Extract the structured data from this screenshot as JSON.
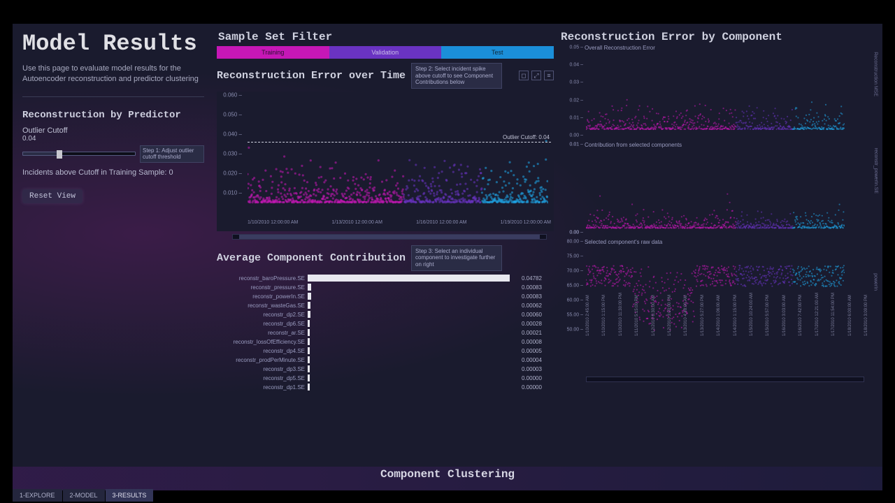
{
  "page": {
    "title": "Model Results",
    "subtitle": "Use this page to evaluate model results for the Autoencoder reconstruction and predictor clustering"
  },
  "sidebar": {
    "section_title": "Reconstruction by Predictor",
    "cutoff_label": "Outlier Cutoff",
    "cutoff_value": "0.04",
    "slider": {
      "min": 0,
      "max": 0.12,
      "value": 0.04
    },
    "step1_tip": "Step 1: Adjust outlier cutoff threshold",
    "incidents_text": "Incidents above Cutoff in Training Sample: 0",
    "reset_button": "Reset View"
  },
  "filter": {
    "title": "Sample Set Filter",
    "tabs": [
      {
        "label": "Training",
        "color": "#c617b6",
        "text_color": "#2a1030"
      },
      {
        "label": "Validation",
        "color": "#6a33c2",
        "text_color": "#c8bde8"
      },
      {
        "label": "Test",
        "color": "#1b8fd9",
        "text_color": "#102838"
      }
    ]
  },
  "error_over_time": {
    "title": "Reconstruction Error over Time",
    "step2_tip": "Step 2: Select incident spike above cutoff to see Component Contributions below",
    "type": "scatter",
    "ylim": [
      0,
      0.065
    ],
    "yticks": [
      0.01,
      0.02,
      0.03,
      0.04,
      0.05,
      0.06
    ],
    "cutoff_line": 0.04,
    "cutoff_label": "Outlier Cutoff: 0.04",
    "x_labels": [
      "1/10/2010 12:00:00 AM",
      "1/13/2010 12:00:00 AM",
      "1/16/2010 12:00:00 AM",
      "1/19/2010 12:00:00 AM"
    ],
    "series_colors": {
      "training": "#c617b6",
      "validation": "#6a33c2",
      "test": "#1fa6e8"
    },
    "segment_breaks": [
      0.52,
      0.78
    ],
    "point_count": 900,
    "bg": "#1a1b2e"
  },
  "avg_contribution": {
    "title": "Average Component Contribution",
    "step3_tip": "Step 3: Select an individual component to investigate further on right",
    "type": "bar",
    "bar_color": "#e8e8ef",
    "max_value": 0.05,
    "bars": [
      {
        "label": "reconstr_baroPressure.SE",
        "value": 0.04782,
        "display": "0.04782"
      },
      {
        "label": "reconstr_pressure.SE",
        "value": 0.00083,
        "display": "0.00083"
      },
      {
        "label": "reconstr_powerIn.SE",
        "value": 0.00083,
        "display": "0.00083"
      },
      {
        "label": "reconstr_wasteGas.SE",
        "value": 0.00062,
        "display": "0.00062"
      },
      {
        "label": "reconstr_dp2.SE",
        "value": 0.0006,
        "display": "0.00060"
      },
      {
        "label": "reconstr_dp6.SE",
        "value": 0.00028,
        "display": "0.00028"
      },
      {
        "label": "reconstr_ar.SE",
        "value": 0.00021,
        "display": "0.00021"
      },
      {
        "label": "reconstr_lossOfEfficiency.SE",
        "value": 8e-05,
        "display": "0.00008"
      },
      {
        "label": "reconstr_dp4.SE",
        "value": 5e-05,
        "display": "0.00005"
      },
      {
        "label": "reconstr_prodPerMinute.SE",
        "value": 4e-05,
        "display": "0.00004"
      },
      {
        "label": "reconstr_dp3.SE",
        "value": 3e-05,
        "display": "0.00003"
      },
      {
        "label": "reconstr_dp5.SE",
        "value": 0.0,
        "display": "0.00000"
      },
      {
        "label": "reconstr_dp1.SE",
        "value": 0.0,
        "display": "0.00000"
      }
    ]
  },
  "right": {
    "title": "Reconstruction Error by Component",
    "panels": [
      {
        "type": "scatter",
        "heading": "Overall Reconstruction Error",
        "side_label": "Reconstruction MSE",
        "ylim": [
          0,
          0.05
        ],
        "yticks": [
          0.0,
          0.01,
          0.02,
          0.03,
          0.04,
          0.05
        ],
        "segment_breaks": [
          0.58,
          0.8
        ],
        "yspread": [
          0.0,
          0.018
        ],
        "base": 0.005
      },
      {
        "type": "scatter",
        "heading": "Contribution from selected components",
        "side_label": "reconstr_powerIn.SE",
        "ylim": [
          0,
          0.01
        ],
        "yticks": [
          0.0,
          0.0,
          0.0,
          0.0,
          0.01,
          0.01
        ],
        "segment_breaks": [
          0.58,
          0.8
        ],
        "yspread": [
          0.0,
          0.0025
        ],
        "base": 0.0008
      },
      {
        "type": "scatter",
        "heading": "Selected component's raw data",
        "side_label": "powerIn",
        "ylim": [
          50,
          80
        ],
        "yticks": [
          50.0,
          55.0,
          60.0,
          65.0,
          70.0,
          75.0,
          80.0
        ],
        "segment_breaks": [
          0.58,
          0.8
        ],
        "yspread": [
          52,
          77
        ],
        "base": 70
      }
    ],
    "x_labels": [
      "1/10/2010 2:45:00 AM",
      "1/10/2010 1:15:00 PM",
      "1/10/2010 11:30:00 PM",
      "1/11/2010 5:15:00 PM",
      "1/12/2010 6:30:00 AM",
      "1/12/2010 3:00:00 PM",
      "1/13/2010 4:48:00 AM",
      "1/13/2010 5:27:00 PM",
      "1/14/2010 1:06:00 AM",
      "1/14/2010 1:15:00 PM",
      "1/15/2010 10:24:00 AM",
      "1/15/2010 5:57:00 PM",
      "1/16/2010 3:03:00 AM",
      "1/16/2010 7:42:00 PM",
      "1/17/2010 12:21:00 AM",
      "1/17/2010 11:54:00 PM",
      "1/18/2010 6:00:00 AM",
      "1/18/2010 3:09:00 PM"
    ]
  },
  "clustering": {
    "title": "Component Clustering"
  },
  "bottom_tabs": [
    {
      "label": "1-EXPLORE"
    },
    {
      "label": "2-MODEL"
    },
    {
      "label": "3-RESULTS",
      "active": true
    }
  ]
}
